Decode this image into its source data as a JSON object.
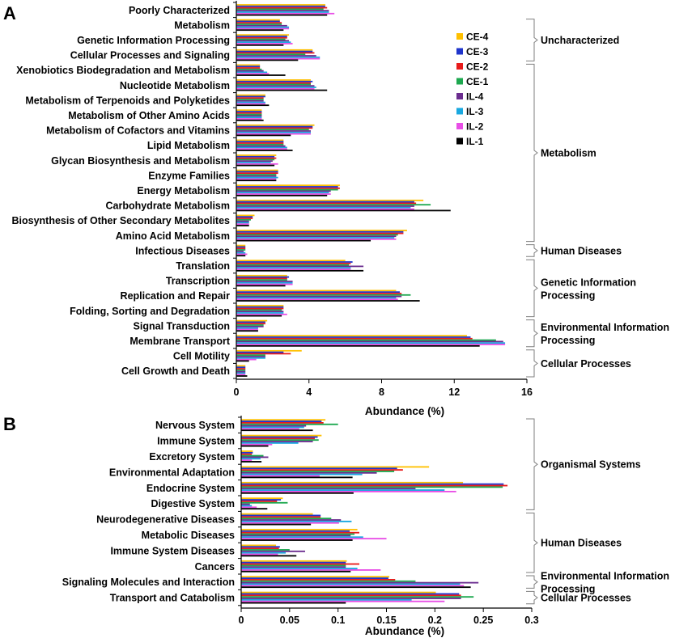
{
  "series_names": [
    "CE-4",
    "CE-3",
    "CE-2",
    "CE-1",
    "IL-4",
    "IL-3",
    "IL-2",
    "IL-1"
  ],
  "series_colors": [
    "#FFC000",
    "#1F35CC",
    "#E81B1B",
    "#1DA84F",
    "#6B2D8F",
    "#19A8E0",
    "#E84FE6",
    "#000000"
  ],
  "chart_data": [
    {
      "type": "bar",
      "orientation": "horizontal",
      "panel_label": "A",
      "xlabel": "Abundance (%)",
      "xlim": [
        0,
        16
      ],
      "xticks": [
        0,
        4,
        8,
        12,
        16
      ],
      "legend_position": "top-right",
      "categories": [
        "Poorly Characterized",
        "Metabolism",
        "Genetic Information Processing",
        "Cellular Processes and Signaling",
        "Xenobiotics Biodegradation and Metabolism",
        "Nucleotide Metabolism",
        "Metabolism of Terpenoids and Polyketides",
        "Metabolism of Other Amino Acids",
        "Metabolism of Cofactors and Vitamins",
        "Lipid Metabolism",
        "Glycan Biosynthesis and Metabolism",
        "Enzyme Families",
        "Energy Metabolism",
        "Carbohydrate Metabolism",
        "Biosynthesis of Other Secondary Metabolites",
        "Amino Acid Metabolism",
        "Infectious Diseases",
        "Translation",
        "Transcription",
        "Replication and Repair",
        "Folding, Sorting and Degradation",
        "Signal Transduction",
        "Membrane Transport",
        "Cell Motility",
        "Cell Growth and Death"
      ],
      "series": [
        {
          "name": "CE-4",
          "values": [
            4.9,
            2.4,
            2.9,
            4.2,
            1.3,
            4.1,
            1.6,
            1.4,
            4.3,
            2.6,
            2.2,
            2.3,
            5.7,
            10.3,
            1.0,
            9.4,
            0.5,
            6.0,
            2.8,
            8.8,
            2.6,
            1.7,
            12.7,
            3.6,
            0.5
          ]
        },
        {
          "name": "CE-3",
          "values": [
            4.9,
            2.4,
            2.8,
            4.2,
            1.3,
            4.2,
            1.6,
            1.4,
            4.2,
            2.6,
            2.1,
            2.3,
            5.6,
            9.8,
            0.9,
            9.2,
            0.5,
            6.4,
            2.9,
            9.0,
            2.6,
            1.6,
            12.9,
            2.6,
            0.5
          ]
        },
        {
          "name": "CE-2",
          "values": [
            5.0,
            2.5,
            2.8,
            4.3,
            1.3,
            4.1,
            1.5,
            1.4,
            4.2,
            2.6,
            2.2,
            2.3,
            5.7,
            9.9,
            0.9,
            9.2,
            0.5,
            6.3,
            2.8,
            9.1,
            2.6,
            1.6,
            13.0,
            3.0,
            0.5
          ]
        },
        {
          "name": "CE-1",
          "values": [
            4.8,
            2.5,
            2.7,
            3.8,
            1.4,
            4.1,
            1.5,
            1.4,
            4.0,
            2.6,
            2.1,
            2.2,
            5.6,
            10.7,
            0.8,
            8.9,
            0.5,
            6.2,
            2.8,
            9.6,
            2.5,
            1.5,
            14.3,
            1.6,
            0.5
          ]
        },
        {
          "name": "IL-4",
          "values": [
            5.1,
            2.8,
            2.9,
            4.4,
            1.5,
            4.3,
            1.5,
            1.4,
            4.1,
            2.7,
            2.0,
            2.2,
            5.2,
            9.8,
            0.7,
            8.8,
            0.4,
            7.0,
            3.1,
            9.1,
            2.6,
            1.5,
            14.7,
            1.6,
            0.5
          ]
        },
        {
          "name": "IL-3",
          "values": [
            5.1,
            2.9,
            3.0,
            4.6,
            1.7,
            4.4,
            1.6,
            1.4,
            4.1,
            2.8,
            1.9,
            2.3,
            5.1,
            9.6,
            0.7,
            8.7,
            0.5,
            6.3,
            3.1,
            8.8,
            2.6,
            1.2,
            14.8,
            1.6,
            0.5
          ]
        },
        {
          "name": "IL-2",
          "values": [
            5.4,
            2.9,
            3.1,
            4.6,
            1.8,
            4.3,
            1.6,
            1.4,
            4.1,
            2.8,
            2.3,
            2.2,
            5.2,
            9.8,
            0.7,
            8.8,
            0.6,
            6.3,
            3.1,
            8.9,
            2.8,
            1.2,
            14.8,
            1.1,
            0.5
          ]
        },
        {
          "name": "IL-1",
          "values": [
            5.0,
            2.6,
            2.6,
            3.4,
            2.7,
            5.0,
            1.8,
            1.5,
            3.0,
            3.1,
            2.1,
            2.2,
            5.0,
            11.8,
            0.7,
            7.4,
            0.5,
            7.0,
            2.7,
            10.1,
            2.5,
            1.2,
            13.4,
            0.7,
            0.6
          ]
        }
      ],
      "groups": [
        {
          "label": "Uncharacterized",
          "from": 1,
          "to": 3
        },
        {
          "label": "Metabolism",
          "from": 4,
          "to": 15
        },
        {
          "label": "Human Diseases",
          "from": 16,
          "to": 16
        },
        {
          "label": "Genetic Information Processing",
          "from": 17,
          "to": 20
        },
        {
          "label": "Environmental Information Processing",
          "from": 21,
          "to": 22
        },
        {
          "label": "Cellular Processes",
          "from": 23,
          "to": 24
        }
      ]
    },
    {
      "type": "bar",
      "orientation": "horizontal",
      "panel_label": "B",
      "xlabel": "Abundance (%)",
      "xlim": [
        0,
        0.3
      ],
      "xticks": [
        0,
        0.05,
        0.1,
        0.15,
        0.2,
        0.25,
        0.3
      ],
      "categories": [
        "Nervous System",
        "Immune System",
        "Excretory System",
        "Environmental Adaptation",
        "Endocrine System",
        "Digestive System",
        "Neurodegenerative Diseases",
        "Metabolic Diseases",
        "Immune System Diseases",
        "Cancers",
        "Signaling Molecules and Interaction",
        "Transport and Catabolism"
      ],
      "series": [
        {
          "name": "CE-4",
          "values": [
            0.087,
            0.083,
            0.012,
            0.194,
            0.229,
            0.043,
            0.074,
            0.12,
            0.036,
            0.109,
            0.153,
            0.201
          ]
        },
        {
          "name": "CE-3",
          "values": [
            0.083,
            0.079,
            0.012,
            0.161,
            0.271,
            0.041,
            0.082,
            0.112,
            0.04,
            0.108,
            0.152,
            0.225
          ]
        },
        {
          "name": "CE-2",
          "values": [
            0.085,
            0.076,
            0.011,
            0.167,
            0.275,
            0.037,
            0.082,
            0.122,
            0.039,
            0.122,
            0.159,
            0.227
          ]
        },
        {
          "name": "CE-1",
          "values": [
            0.1,
            0.08,
            0.023,
            0.158,
            0.27,
            0.048,
            0.093,
            0.117,
            0.05,
            0.108,
            0.18,
            0.24
          ]
        },
        {
          "name": "IL-4",
          "values": [
            0.067,
            0.074,
            0.028,
            0.14,
            0.18,
            0.009,
            0.103,
            0.113,
            0.066,
            0.108,
            0.245,
            0.227
          ]
        },
        {
          "name": "IL-3",
          "values": [
            0.065,
            0.059,
            0.02,
            0.125,
            0.21,
            0.011,
            0.114,
            0.126,
            0.046,
            0.12,
            0.226,
            0.176
          ]
        },
        {
          "name": "IL-2",
          "values": [
            0.06,
            0.032,
            0.011,
            0.081,
            0.222,
            0.016,
            0.101,
            0.15,
            0.038,
            0.144,
            0.23,
            0.21
          ]
        },
        {
          "name": "IL-1",
          "values": [
            0.074,
            0.028,
            0.021,
            0.115,
            0.116,
            0.027,
            0.072,
            0.115,
            0.057,
            0.113,
            0.237,
            0.108
          ]
        }
      ],
      "groups": [
        {
          "label": "Organismal Systems",
          "from": 0,
          "to": 5
        },
        {
          "label": "Human Diseases",
          "from": 6,
          "to": 9
        },
        {
          "label": "Environmental Information Processing",
          "from": 10,
          "to": 10
        },
        {
          "label": "Cellular Processes",
          "from": 11,
          "to": 11
        }
      ]
    }
  ]
}
